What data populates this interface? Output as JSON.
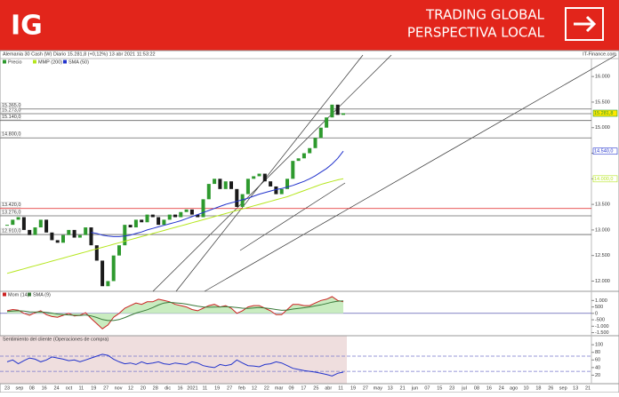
{
  "header": {
    "logo": "IG",
    "title_line1": "TRADING GLOBAL",
    "title_line2": "PERSPECTIVA LOCAL"
  },
  "chart_data": {
    "type": "candlestick",
    "title": "Alemania 30 Cash (W) Diario 15.281,8 (+0,12%) 13 abr 2021 11:53:22",
    "source": "IT-Finance.com",
    "ylim": [
      11800,
      16350
    ],
    "yticks": [
      {
        "value": 12000,
        "label": "12.000"
      },
      {
        "value": 12500,
        "label": "12.500"
      },
      {
        "value": 13000,
        "label": "13.000"
      },
      {
        "value": 13500,
        "label": "13.500"
      },
      {
        "value": 14000,
        "label": "14.000"
      },
      {
        "value": 14500,
        "label": "14.500"
      },
      {
        "value": 15000,
        "label": "15.000"
      },
      {
        "value": 15500,
        "label": "15.500"
      },
      {
        "value": 16000,
        "label": "16.000"
      }
    ],
    "levels": [
      {
        "value": 15365,
        "label": "15.365,0",
        "color": "#666666"
      },
      {
        "value": 15273,
        "label": "15.273,0",
        "color": "#666666"
      },
      {
        "value": 15140,
        "label": "15.140,0",
        "color": "#666666"
      },
      {
        "value": 14800,
        "label": "14.800,0",
        "color": "#666666"
      },
      {
        "value": 13420,
        "label": "13.420,0",
        "color": "#e02020"
      },
      {
        "value": 13276,
        "label": "13.276,0",
        "color": "#666666"
      },
      {
        "value": 12910,
        "label": "12.910,0",
        "color": "#666666"
      }
    ],
    "series": [
      {
        "name": "Precio",
        "color": "#2e9a2e",
        "down_color": "#1a1a1a",
        "last_label": "15.281,8",
        "last_label_color": "#ffe800",
        "values": [
          13100,
          13200,
          13250,
          13000,
          12900,
          13050,
          13200,
          12950,
          12800,
          12750,
          12900,
          13000,
          12850,
          12900,
          13050,
          12700,
          12400,
          11900,
          12000,
          12500,
          12700,
          13100,
          13050,
          13200,
          13150,
          13300,
          13250,
          13100,
          13200,
          13300,
          13250,
          13350,
          13400,
          13300,
          13250,
          13600,
          13900,
          14000,
          13800,
          13950,
          13800,
          13450,
          13700,
          14000,
          14050,
          14100,
          13950,
          13850,
          13700,
          13800,
          14000,
          14350,
          14400,
          14500,
          14600,
          14800,
          15000,
          15200,
          15450,
          15250,
          15281.8
        ]
      },
      {
        "name": "MMP (200)",
        "color": "#b5e61d",
        "last_label": "14.000,0",
        "values": [
          12150,
          12180,
          12210,
          12240,
          12270,
          12300,
          12330,
          12360,
          12390,
          12420,
          12450,
          12480,
          12510,
          12540,
          12570,
          12600,
          12630,
          12660,
          12690,
          12720,
          12750,
          12780,
          12810,
          12840,
          12870,
          12900,
          12930,
          12960,
          12990,
          13020,
          13050,
          13080,
          13110,
          13140,
          13170,
          13200,
          13230,
          13260,
          13290,
          13320,
          13350,
          13380,
          13410,
          13440,
          13470,
          13500,
          13530,
          13560,
          13590,
          13620,
          13650,
          13690,
          13730,
          13770,
          13810,
          13850,
          13890,
          13920,
          13950,
          13980,
          14000
        ]
      },
      {
        "name": "SMA (50)",
        "color": "#2233cc",
        "last_label": "14.540,0",
        "values": [
          null,
          null,
          null,
          null,
          null,
          null,
          null,
          null,
          null,
          null,
          null,
          null,
          null,
          null,
          null,
          12950,
          12930,
          12900,
          12880,
          12870,
          12870,
          12880,
          12900,
          12930,
          12960,
          13000,
          13030,
          13060,
          13090,
          13120,
          13150,
          13180,
          13220,
          13260,
          13300,
          13340,
          13380,
          13420,
          13460,
          13500,
          13530,
          13560,
          13590,
          13620,
          13660,
          13700,
          13730,
          13760,
          13790,
          13810,
          13840,
          13870,
          13910,
          13950,
          14000,
          14060,
          14130,
          14200,
          14290,
          14400,
          14540
        ]
      }
    ],
    "xticks": [
      "23",
      "sep",
      "08",
      "16",
      "24",
      "oct",
      "11",
      "19",
      "27",
      "nov",
      "12",
      "20",
      "28",
      "dic",
      "16",
      "2021",
      "11",
      "19",
      "27",
      "feb",
      "12",
      "22",
      "mar",
      "09",
      "17",
      "25",
      "abr",
      "11",
      "19",
      "27",
      "may",
      "13",
      "21",
      "jun",
      "07",
      "15",
      "23",
      "jul",
      "08",
      "16",
      "24",
      "ago",
      "10",
      "18",
      "26",
      "sep",
      "13",
      "21"
    ]
  },
  "momentum": {
    "ylim": [
      -1600,
      1300
    ],
    "yticks": [
      {
        "value": 1000,
        "label": "1.000"
      },
      {
        "value": 500,
        "label": "500"
      },
      0,
      {
        "value": -500,
        "label": "-500"
      },
      {
        "value": -1000,
        "label": "-1.000"
      },
      {
        "value": -1500,
        "label": "-1.500"
      }
    ],
    "series": [
      {
        "name": "Mom (14)",
        "color": "#cc2222",
        "values": [
          200,
          300,
          250,
          0,
          -150,
          50,
          200,
          -100,
          -250,
          -300,
          -150,
          0,
          -200,
          -150,
          50,
          -400,
          -800,
          -1200,
          -900,
          -300,
          0,
          400,
          600,
          800,
          700,
          900,
          900,
          1100,
          1000,
          900,
          700,
          600,
          500,
          300,
          200,
          400,
          600,
          700,
          500,
          600,
          400,
          0,
          200,
          500,
          600,
          600,
          400,
          200,
          -100,
          -100,
          300,
          700,
          700,
          600,
          600,
          800,
          1000,
          1100,
          1300,
          1000,
          900
        ]
      },
      {
        "name": "SMA (9)",
        "color": "#3a7a3a",
        "values": [
          150,
          180,
          200,
          180,
          120,
          100,
          120,
          80,
          20,
          -50,
          -100,
          -120,
          -150,
          -170,
          -120,
          -200,
          -320,
          -480,
          -560,
          -560,
          -480,
          -330,
          -150,
          20,
          150,
          280,
          450,
          650,
          800,
          860,
          820,
          780,
          720,
          640,
          560,
          500,
          480,
          490,
          500,
          520,
          500,
          450,
          400,
          380,
          420,
          450,
          420,
          370,
          300,
          240,
          260,
          330,
          390,
          440,
          500,
          580,
          660,
          760,
          870,
          950,
          970
        ]
      }
    ]
  },
  "sentiment": {
    "title": "Sentimiento del cliente (Operaciones de compra)",
    "color": "#2233cc",
    "ylim": [
      0,
      105
    ],
    "yticks": [
      100,
      80,
      60,
      40,
      20
    ],
    "levels": [
      70,
      30
    ],
    "values": [
      55,
      60,
      50,
      58,
      65,
      62,
      55,
      60,
      68,
      65,
      62,
      58,
      60,
      55,
      60,
      65,
      70,
      75,
      72,
      62,
      55,
      50,
      52,
      48,
      55,
      50,
      52,
      55,
      50,
      48,
      52,
      50,
      48,
      55,
      52,
      45,
      42,
      40,
      48,
      45,
      48,
      60,
      52,
      45,
      44,
      42,
      48,
      50,
      55,
      52,
      45,
      38,
      35,
      32,
      30,
      28,
      25,
      22,
      18,
      25,
      28
    ]
  }
}
